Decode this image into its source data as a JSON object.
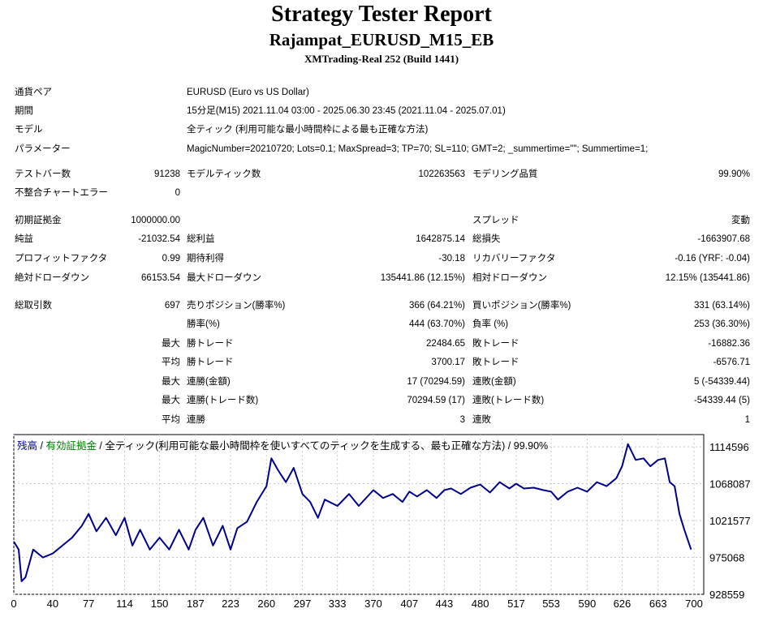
{
  "header": {
    "title": "Strategy Tester Report",
    "subtitle": "Rajampat_EURUSD_M15_EB",
    "server": "XMTrading-Real 252 (Build 1441)"
  },
  "info": {
    "pair_label": "通貨ペア",
    "pair": "EURUSD (Euro vs US Dollar)",
    "period_label": "期間",
    "period": "15分足(M15) 2021.11.04 03:00 - 2025.06.30 23:45 (2021.11.04 - 2025.07.01)",
    "model_label": "モデル",
    "model": "全ティック (利用可能な最小時間枠による最も正確な方法)",
    "params_label": "パラメーター",
    "params": "MagicNumber=20210720; Lots=0.1; MaxSpread=3; TP=70; SL=110; GMT=2; _summertime=\"\"; Summertime=1;"
  },
  "stats": {
    "bars_label": "テストバー数",
    "bars": "91238",
    "ticks_label": "モデルティック数",
    "ticks": "102263563",
    "quality_label": "モデリング品質",
    "quality": "99.90%",
    "errors_label": "不整合チャートエラー",
    "errors": "0",
    "deposit_label": "初期証拠金",
    "deposit": "1000000.00",
    "spread_label": "スプレッド",
    "spread": "変動",
    "net_label": "純益",
    "net": "-21032.54",
    "gross_profit_label": "総利益",
    "gross_profit": "1642875.14",
    "gross_loss_label": "総損失",
    "gross_loss": "-1663907.68",
    "pf_label": "プロフィットファクタ",
    "pf": "0.99",
    "expected_label": "期待利得",
    "expected": "-30.18",
    "recovery_label": "リカバリーファクタ",
    "recovery": "-0.16 (YRF: -0.04)",
    "abs_dd_label": "絶対ドローダウン",
    "abs_dd": "66153.54",
    "max_dd_label": "最大ドローダウン",
    "max_dd": "135441.86 (12.15%)",
    "rel_dd_label": "相対ドローダウン",
    "rel_dd": "12.15% (135441.86)",
    "trades_label": "総取引数",
    "trades": "697",
    "short_label": "売りポジション(勝率%)",
    "short": "366 (64.21%)",
    "long_label": "買いポジション(勝率%)",
    "long": "331 (63.14%)",
    "win_pct_label": "勝率(%)",
    "win_pct": "444 (63.70%)",
    "loss_pct_label": "負率 (%)",
    "loss_pct": "253 (36.30%)",
    "max_label": "最大",
    "avg_label": "平均",
    "win_trade_label": "勝トレード",
    "loss_trade_label": "敗トレード",
    "largest_win": "22484.65",
    "largest_loss": "-16882.36",
    "avg_win": "3700.17",
    "avg_loss": "-6576.71",
    "consec_win_money_label": "連勝(金額)",
    "consec_win_money": "17 (70294.59)",
    "consec_loss_money_label": "連敗(金額)",
    "consec_loss_money": "5 (-54339.44)",
    "consec_win_count_label": "連勝(トレード数)",
    "consec_win_count": "70294.59 (17)",
    "consec_loss_count_label": "連敗(トレード数)",
    "consec_loss_count": "-54339.44 (5)",
    "avg_consec_win_label": "連勝",
    "avg_consec_win": "3",
    "avg_consec_loss_label": "連敗",
    "avg_consec_loss": "1"
  },
  "legend": {
    "balance": "残高",
    "sep1": " / ",
    "equity": "有効証拠金",
    "sep2": " / ",
    "text": "全ティック(利用可能な最小時間枠を使いすべてのティックを生成する、最も正確な方法) / 99.90%"
  },
  "colors": {
    "balance": "#00008b",
    "equity": "#008000",
    "grid": "#c8c8c8"
  },
  "chart_data": {
    "type": "line",
    "xlim": [
      0,
      710
    ],
    "ylim": [
      928559,
      1130000
    ],
    "x_ticks": [
      0,
      40,
      77,
      114,
      150,
      187,
      223,
      260,
      297,
      333,
      370,
      407,
      443,
      480,
      517,
      553,
      590,
      626,
      663,
      700
    ],
    "y_ticks": [
      928559,
      975068,
      1021577,
      1068087,
      1114596
    ],
    "series": [
      {
        "name": "残高",
        "x": [
          0,
          5,
          8,
          12,
          20,
          30,
          40,
          50,
          60,
          70,
          77,
          85,
          95,
          105,
          114,
          122,
          130,
          140,
          150,
          160,
          170,
          180,
          187,
          195,
          205,
          215,
          223,
          230,
          240,
          250,
          260,
          265,
          272,
          280,
          288,
          297,
          305,
          313,
          320,
          333,
          345,
          355,
          370,
          380,
          390,
          400,
          407,
          415,
          425,
          435,
          443,
          450,
          460,
          470,
          480,
          490,
          500,
          510,
          517,
          525,
          535,
          545,
          553,
          560,
          570,
          580,
          590,
          600,
          610,
          620,
          626,
          632,
          640,
          648,
          655,
          663,
          670,
          675,
          680,
          685,
          690,
          697
        ],
        "values": [
          995000,
          985000,
          945000,
          950000,
          985000,
          975000,
          980000,
          990000,
          1000000,
          1015000,
          1030000,
          1008000,
          1025000,
          1003000,
          1025000,
          990000,
          1010000,
          985000,
          1000000,
          985000,
          1010000,
          985000,
          1010000,
          1025000,
          990000,
          1015000,
          985000,
          1012000,
          1020000,
          1045000,
          1065000,
          1100000,
          1085000,
          1070000,
          1088000,
          1055000,
          1045000,
          1025000,
          1048000,
          1040000,
          1055000,
          1040000,
          1060000,
          1050000,
          1055000,
          1045000,
          1058000,
          1052000,
          1060000,
          1050000,
          1060000,
          1062000,
          1055000,
          1063000,
          1067000,
          1057000,
          1070000,
          1062000,
          1068000,
          1062000,
          1063000,
          1060000,
          1058000,
          1048000,
          1058000,
          1063000,
          1058000,
          1070000,
          1065000,
          1075000,
          1090000,
          1118000,
          1098000,
          1100000,
          1090000,
          1098000,
          1100000,
          1070000,
          1065000,
          1030000,
          1010000,
          985000
        ]
      }
    ]
  }
}
